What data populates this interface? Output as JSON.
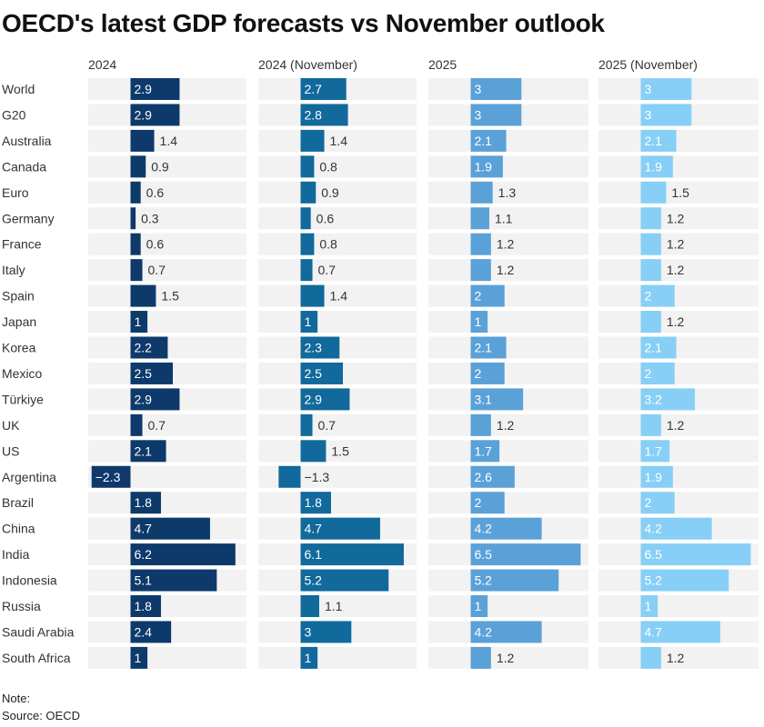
{
  "title": "OECD's latest GDP forecasts vs November outlook",
  "note_label": "Note:",
  "source_label": "Source: OECD",
  "colors": {
    "panel_bg": "#f2f2f2",
    "text": "#333333",
    "label_on_bar": "#ffffff",
    "series": [
      "#0d3a6b",
      "#11699c",
      "#5aa1d8",
      "#87cff6"
    ]
  },
  "chart_data": {
    "type": "bar",
    "orientation": "horizontal",
    "layout": "small-multiples",
    "categories": [
      "World",
      "G20",
      "Australia",
      "Canada",
      "Euro",
      "Germany",
      "France",
      "Italy",
      "Spain",
      "Japan",
      "Korea",
      "Mexico",
      "Türkiye",
      "UK",
      "US",
      "Argentina",
      "Brazil",
      "China",
      "India",
      "Indonesia",
      "Russia",
      "Saudi Arabia",
      "South Africa"
    ],
    "series": [
      {
        "name": "2024",
        "values": [
          2.9,
          2.9,
          1.4,
          0.9,
          0.6,
          0.3,
          0.6,
          0.7,
          1.5,
          1,
          2.2,
          2.5,
          2.9,
          0.7,
          2.1,
          -2.3,
          1.8,
          4.7,
          6.2,
          5.1,
          1.8,
          2.4,
          1
        ]
      },
      {
        "name": "2024 (November)",
        "values": [
          2.7,
          2.8,
          1.4,
          0.8,
          0.9,
          0.6,
          0.8,
          0.7,
          1.4,
          1,
          2.3,
          2.5,
          2.9,
          0.7,
          1.5,
          -1.3,
          1.8,
          4.7,
          6.1,
          5.2,
          1.1,
          3,
          1
        ]
      },
      {
        "name": "2025",
        "values": [
          3,
          3,
          2.1,
          1.9,
          1.3,
          1.1,
          1.2,
          1.2,
          2,
          1,
          2.1,
          2,
          3.1,
          1.2,
          1.7,
          2.6,
          2,
          4.2,
          6.5,
          5.2,
          1,
          4.2,
          1.2
        ]
      },
      {
        "name": "2025 (November)",
        "values": [
          3,
          3,
          2.1,
          1.9,
          1.5,
          1.2,
          1.2,
          1.2,
          2,
          1.2,
          2.1,
          2,
          3.2,
          1.2,
          1.7,
          1.9,
          2,
          4.2,
          6.5,
          5.2,
          1,
          4.7,
          1.2
        ]
      }
    ],
    "xlim": [
      -2.3,
      6.5
    ],
    "grid": false,
    "legend": "none"
  }
}
